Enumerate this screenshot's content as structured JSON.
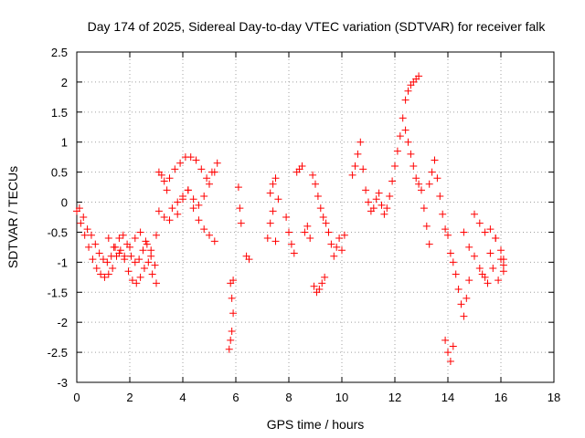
{
  "chart_data": {
    "type": "scatter",
    "title": "Day 174 of 2025, Sidereal Day-to-day VTEC variation (SDTVAR) for receiver falk",
    "xlabel": "GPS time / hours",
    "ylabel": "SDTVAR / TECUs",
    "xlim": [
      0,
      18
    ],
    "ylim": [
      -3,
      2.5
    ],
    "xticks": [
      0,
      2,
      4,
      6,
      8,
      10,
      12,
      14,
      16,
      18
    ],
    "xtick_labels": [
      "0",
      "2",
      "4",
      "6",
      "8",
      "10",
      "12",
      "14",
      "16",
      "18"
    ],
    "yticks": [
      -3,
      -2.5,
      -2,
      -1.5,
      -1,
      -0.5,
      0,
      0.5,
      1,
      1.5,
      2,
      2.5
    ],
    "ytick_labels": [
      "-3",
      "-2.5",
      "-2",
      "-1.5",
      "-1",
      "-0.5",
      "0",
      "0.5",
      "1",
      "1.5",
      "2",
      "2.5"
    ],
    "grid": true,
    "marker": "+",
    "color": "#ff0000",
    "series": [
      {
        "name": "SDTVAR",
        "x": [
          0.0,
          0.15,
          0.3,
          0.45,
          0.6,
          0.75,
          0.9,
          1.05,
          1.2,
          1.35,
          1.5,
          1.65,
          1.8,
          1.95,
          2.1,
          2.25,
          2.4,
          2.55,
          2.7,
          2.85,
          3.0,
          0.1,
          0.25,
          0.4,
          0.55,
          0.7,
          0.85,
          1.0,
          1.15,
          1.3,
          1.45,
          1.6,
          1.75,
          1.9,
          2.05,
          2.2,
          2.35,
          2.5,
          2.65,
          2.8,
          2.95,
          1.2,
          1.4,
          1.6,
          1.8,
          2.0,
          2.2,
          2.4,
          2.6,
          2.8,
          3.0,
          3.1,
          3.2,
          3.3,
          3.4,
          3.1,
          3.3,
          3.5,
          3.5,
          3.7,
          3.9,
          4.1,
          4.3,
          4.5,
          4.7,
          4.9,
          5.1,
          5.3,
          3.6,
          3.8,
          4.0,
          4.2,
          4.4,
          4.6,
          4.8,
          5.0,
          5.2,
          3.8,
          4.0,
          4.2,
          4.4,
          4.6,
          4.8,
          5.0,
          5.2,
          5.8,
          5.85,
          5.9,
          5.75,
          5.8,
          5.85,
          5.9,
          6.1,
          6.15,
          6.2,
          6.4,
          6.5,
          7.2,
          7.3,
          7.4,
          7.5,
          7.3,
          7.4,
          7.5,
          7.6,
          7.9,
          8.0,
          8.1,
          8.2,
          8.3,
          8.4,
          8.5,
          8.6,
          8.7,
          8.8,
          8.9,
          9.0,
          9.1,
          9.2,
          9.3,
          9.4,
          8.95,
          9.05,
          9.15,
          9.25,
          9.35,
          9.5,
          9.6,
          9.7,
          9.8,
          9.9,
          10.0,
          10.1,
          10.4,
          10.5,
          10.6,
          10.7,
          10.8,
          10.9,
          11.0,
          11.1,
          11.2,
          11.3,
          11.4,
          11.5,
          11.6,
          11.7,
          11.8,
          11.9,
          12.0,
          12.1,
          12.2,
          12.3,
          12.4,
          12.5,
          12.6,
          12.7,
          12.8,
          12.9,
          12.4,
          12.5,
          12.6,
          12.7,
          12.8,
          12.9,
          13.0,
          13.1,
          13.2,
          13.3,
          13.3,
          13.4,
          13.5,
          13.6,
          13.7,
          13.8,
          13.9,
          14.0,
          14.1,
          14.2,
          13.9,
          14.0,
          14.1,
          14.2,
          14.3,
          14.4,
          14.5,
          14.6,
          14.7,
          14.8,
          14.6,
          14.8,
          15.0,
          15.2,
          15.4,
          15.6,
          15.8,
          16.0,
          16.1,
          15.0,
          15.2,
          15.4,
          15.6,
          15.8,
          16.0,
          16.1,
          15.3,
          15.5,
          15.7,
          15.9,
          16.1
        ],
        "y": [
          -0.15,
          -0.35,
          -0.55,
          -0.75,
          -0.95,
          -1.1,
          -1.2,
          -1.25,
          -1.2,
          -1.1,
          -0.9,
          -0.8,
          -0.95,
          -1.15,
          -1.3,
          -1.35,
          -1.25,
          -1.1,
          -1.0,
          -1.2,
          -1.35,
          -0.1,
          -0.25,
          -0.45,
          -0.55,
          -0.7,
          -0.85,
          -0.95,
          -1.0,
          -0.9,
          -0.75,
          -0.6,
          -0.55,
          -0.7,
          -0.9,
          -1.0,
          -0.95,
          -0.8,
          -0.7,
          -0.9,
          -1.05,
          -0.6,
          -0.75,
          -0.85,
          -0.9,
          -0.75,
          -0.6,
          -0.5,
          -0.65,
          -0.8,
          -0.55,
          0.5,
          0.45,
          0.35,
          0.2,
          -0.15,
          -0.25,
          -0.3,
          0.4,
          0.55,
          0.65,
          0.75,
          0.75,
          0.7,
          0.55,
          0.4,
          0.5,
          0.65,
          -0.1,
          0.0,
          0.1,
          0.2,
          0.05,
          -0.05,
          0.1,
          0.3,
          0.5,
          -0.2,
          0.05,
          0.2,
          -0.1,
          -0.3,
          -0.45,
          -0.55,
          -0.65,
          -1.35,
          -1.6,
          -1.85,
          -2.45,
          -2.3,
          -2.15,
          -1.3,
          0.25,
          -0.1,
          -0.35,
          -0.9,
          -0.95,
          -0.6,
          -0.35,
          -0.15,
          -0.65,
          0.15,
          0.3,
          0.4,
          0.05,
          -0.25,
          -0.5,
          -0.7,
          -0.85,
          0.5,
          0.55,
          0.6,
          -0.5,
          -0.4,
          -0.6,
          0.45,
          0.3,
          0.1,
          -0.1,
          -0.25,
          -0.35,
          -1.4,
          -1.5,
          -1.45,
          -1.35,
          -1.25,
          -0.5,
          -0.7,
          -0.9,
          -0.75,
          -0.6,
          -0.8,
          -0.55,
          0.45,
          0.6,
          0.8,
          1.0,
          0.55,
          0.2,
          0.0,
          -0.15,
          -0.1,
          0.05,
          0.15,
          -0.05,
          -0.2,
          -0.1,
          0.1,
          0.35,
          0.6,
          0.85,
          1.1,
          1.4,
          1.7,
          1.85,
          1.95,
          2.0,
          2.05,
          2.1,
          1.2,
          1.0,
          0.8,
          0.6,
          0.4,
          0.3,
          0.2,
          -0.1,
          -0.4,
          -0.7,
          0.3,
          0.5,
          0.7,
          0.4,
          0.1,
          -0.2,
          -0.45,
          -0.55,
          -0.85,
          -1.0,
          -2.3,
          -2.5,
          -2.65,
          -2.4,
          -1.2,
          -1.45,
          -1.7,
          -1.9,
          -1.6,
          -1.3,
          -0.5,
          -0.75,
          -0.9,
          -1.1,
          -1.25,
          -0.85,
          -0.6,
          -0.95,
          -1.05,
          -0.2,
          -0.35,
          -0.5,
          -0.45,
          -0.6,
          -0.8,
          -0.95,
          -1.2,
          -1.35,
          -1.1,
          -1.3,
          -1.15
        ]
      }
    ]
  }
}
